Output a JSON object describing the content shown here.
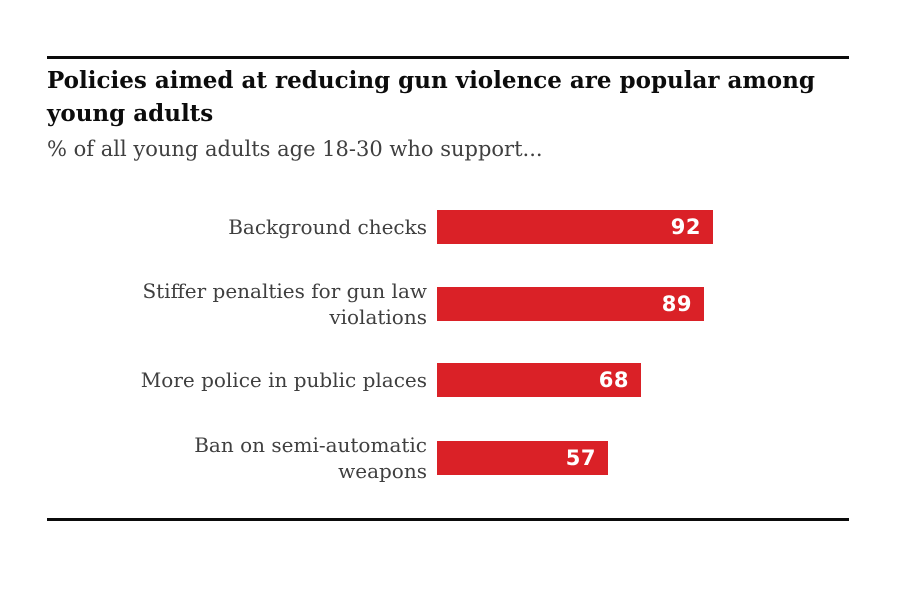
{
  "page": {
    "background": "#ffffff",
    "rule_color": "#0b0b0b"
  },
  "header": {
    "title": "Policies aimed at reducing gun violence are popular among\nyoung adults",
    "subtitle": "% of all young adults age 18-30 who support..."
  },
  "chart_data": {
    "type": "bar",
    "orientation": "horizontal",
    "title": "Policies aimed at reducing gun violence are popular among young adults",
    "subtitle": "% of all young adults age 18-30 who support...",
    "categories": [
      "Background checks",
      "Stiffer penalties for gun law violations",
      "More police in public places",
      "Ban on semi-automatic weapons"
    ],
    "values": [
      92,
      89,
      68,
      57
    ],
    "xlim": [
      0,
      100
    ],
    "grid": false,
    "value_labels": "inside-right",
    "colors": {
      "bar": "#da2127",
      "value_text": "#ffffff",
      "label_text": "#3f3f3f",
      "title_text": "#0c0c0c"
    },
    "rows": [
      {
        "label": "Background checks",
        "value": 92
      },
      {
        "label": "Stiffer penalties for gun law\nviolations",
        "value": 89
      },
      {
        "label": "More police in public places",
        "value": 68
      },
      {
        "label": "Ban on semi-automatic\nweapons",
        "value": 57
      }
    ]
  }
}
